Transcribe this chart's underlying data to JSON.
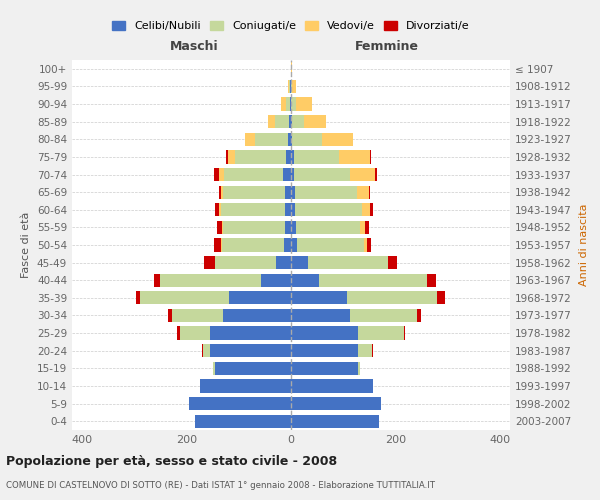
{
  "age_groups": [
    "100+",
    "95-99",
    "90-94",
    "85-89",
    "80-84",
    "75-79",
    "70-74",
    "65-69",
    "60-64",
    "55-59",
    "50-54",
    "45-49",
    "40-44",
    "35-39",
    "30-34",
    "25-29",
    "20-24",
    "15-19",
    "10-14",
    "5-9",
    "0-4"
  ],
  "birth_years": [
    "≤ 1907",
    "1908-1912",
    "1913-1917",
    "1918-1922",
    "1923-1927",
    "1928-1932",
    "1933-1937",
    "1938-1942",
    "1943-1947",
    "1948-1952",
    "1953-1957",
    "1958-1962",
    "1963-1967",
    "1968-1972",
    "1973-1977",
    "1978-1982",
    "1983-1987",
    "1988-1992",
    "1993-1997",
    "1998-2002",
    "2003-2007"
  ],
  "male_celibi": [
    0,
    1,
    2,
    3,
    5,
    10,
    15,
    12,
    12,
    12,
    14,
    28,
    58,
    118,
    130,
    155,
    155,
    145,
    175,
    195,
    185
  ],
  "male_coniugati": [
    0,
    2,
    8,
    28,
    65,
    98,
    113,
    118,
    123,
    118,
    118,
    118,
    193,
    172,
    98,
    58,
    14,
    4,
    0,
    0,
    0
  ],
  "male_vedovi": [
    0,
    2,
    10,
    14,
    18,
    12,
    11,
    4,
    4,
    3,
    2,
    0,
    0,
    0,
    0,
    0,
    0,
    0,
    0,
    0,
    0
  ],
  "male_divorziati": [
    0,
    0,
    0,
    0,
    0,
    5,
    8,
    5,
    7,
    8,
    13,
    21,
    12,
    8,
    8,
    5,
    2,
    0,
    0,
    0,
    0
  ],
  "fem_celibi": [
    0,
    0,
    0,
    2,
    2,
    5,
    5,
    8,
    8,
    10,
    12,
    33,
    53,
    108,
    113,
    128,
    128,
    128,
    158,
    173,
    168
  ],
  "fem_coniugati": [
    0,
    2,
    10,
    23,
    58,
    88,
    108,
    118,
    128,
    123,
    128,
    153,
    208,
    172,
    128,
    88,
    28,
    5,
    0,
    0,
    0
  ],
  "fem_vedovi": [
    2,
    8,
    30,
    43,
    58,
    58,
    48,
    23,
    16,
    8,
    5,
    0,
    0,
    0,
    0,
    0,
    0,
    0,
    0,
    0,
    0
  ],
  "fem_divorziati": [
    0,
    0,
    0,
    0,
    0,
    3,
    3,
    3,
    5,
    8,
    8,
    18,
    18,
    15,
    8,
    3,
    2,
    0,
    0,
    0,
    0
  ],
  "color_celibi": "#4472C4",
  "color_coniugati": "#C5D89C",
  "color_vedovi": "#FFCC66",
  "color_divorziati": "#CC0000",
  "title_main": "Popolazione per età, sesso e stato civile - 2008",
  "title_sub": "COMUNE DI CASTELNOVO DI SOTTO (RE) - Dati ISTAT 1° gennaio 2008 - Elaborazione TUTTITALIA.IT",
  "xlabel_left": "Maschi",
  "xlabel_right": "Femmine",
  "ylabel_left": "Fasce di età",
  "ylabel_right": "Anni di nascita",
  "xlim": 420,
  "legend_labels": [
    "Celibi/Nubili",
    "Coniugati/e",
    "Vedovi/e",
    "Divorziati/e"
  ],
  "bg_color": "#f0f0f0",
  "plot_bg": "#ffffff"
}
